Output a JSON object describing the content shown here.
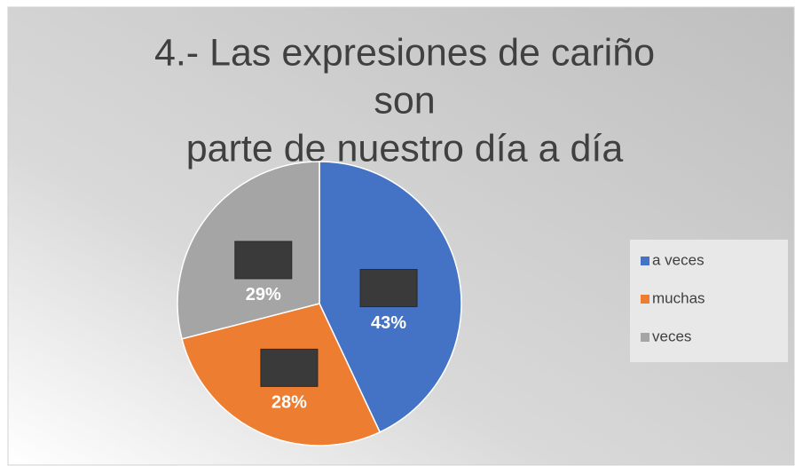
{
  "chart_data": {
    "type": "pie",
    "title": [
      "4.- Las expresiones de cariño",
      "son",
      "parte de nuestro día a día"
    ],
    "categories": [
      "a veces",
      "muchas",
      "veces"
    ],
    "values": [
      43,
      28,
      29
    ],
    "value_labels": [
      "43%",
      "28%",
      "29%"
    ],
    "colors": [
      "#4472c4",
      "#ed7d31",
      "#a5a5a5"
    ],
    "legend": "right"
  }
}
